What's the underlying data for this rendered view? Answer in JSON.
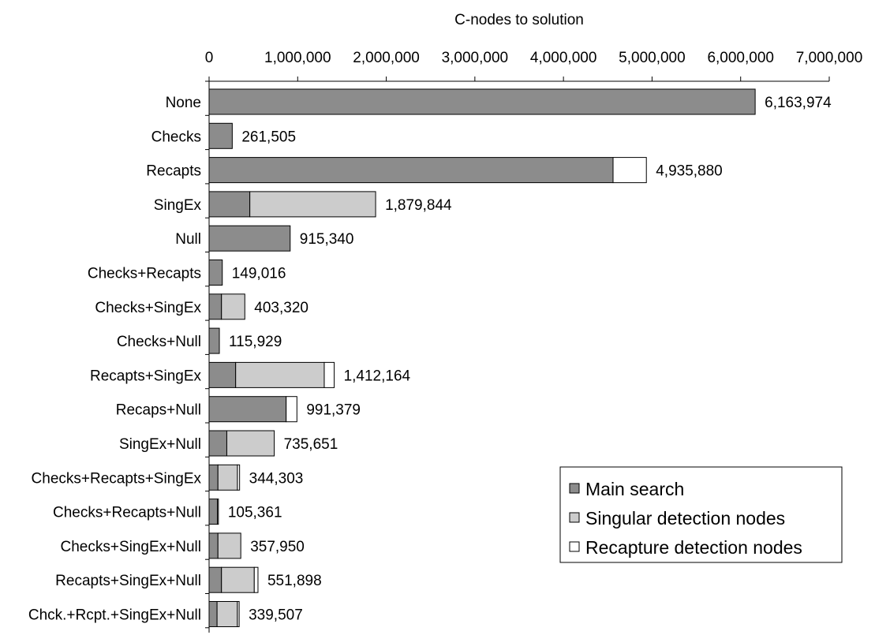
{
  "chart_data": {
    "type": "bar",
    "orientation": "horizontal",
    "stacked": true,
    "xlabel": "C-nodes to solution",
    "xlim": [
      0,
      7000000
    ],
    "x_ticks": [
      0,
      1000000,
      2000000,
      3000000,
      4000000,
      5000000,
      6000000,
      7000000
    ],
    "x_tick_labels": [
      "0",
      "1,000,000",
      "2,000,000",
      "3,000,000",
      "4,000,000",
      "5,000,000",
      "6,000,000",
      "7,000,000"
    ],
    "grid": false,
    "legend_position": "bottom-right",
    "categories": [
      "None",
      "Checks",
      "Recapts",
      "SingEx",
      "Null",
      "Checks+Recapts",
      "Checks+SingEx",
      "Checks+Null",
      "Recapts+SingEx",
      "Recaps+Null",
      "SingEx+Null",
      "Checks+Recapts+SingEx",
      "Checks+Recapts+Null",
      "Checks+SingEx+Null",
      "Recapts+SingEx+Null",
      "Chck.+Rcpt.+SingEx+Null"
    ],
    "series": [
      {
        "name": "Main search",
        "color": "#8c8c8c",
        "values": [
          6163974,
          261505,
          4560000,
          460000,
          915340,
          149016,
          140000,
          115929,
          300000,
          870000,
          200000,
          100000,
          95000,
          100000,
          140000,
          90000
        ]
      },
      {
        "name": "Singular detection nodes",
        "color": "#cccccc",
        "values": [
          0,
          0,
          0,
          1419844,
          0,
          0,
          263320,
          0,
          1000000,
          0,
          535651,
          220000,
          0,
          257950,
          370000,
          229507
        ]
      },
      {
        "name": "Recapture detection nodes",
        "color": "#ffffff",
        "values": [
          0,
          0,
          375880,
          0,
          0,
          0,
          0,
          0,
          112164,
          121379,
          0,
          24303,
          10361,
          0,
          41898,
          20000
        ]
      }
    ],
    "totals": [
      6163974,
      261505,
      4935880,
      1879844,
      915340,
      149016,
      403320,
      115929,
      1412164,
      991379,
      735651,
      344303,
      105361,
      357950,
      551898,
      339507
    ],
    "total_labels": [
      "6,163,974",
      "261,505",
      "4,935,880",
      "1,879,844",
      "915,340",
      "149,016",
      "403,320",
      "115,929",
      "1,412,164",
      "991,379",
      "735,651",
      "344,303",
      "105,361",
      "357,950",
      "551,898",
      "339,507"
    ]
  }
}
